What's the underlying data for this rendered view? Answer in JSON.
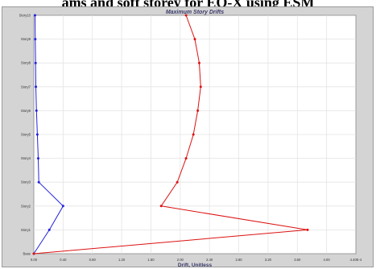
{
  "caption": "ams and soft storey for EQ-X using ESM",
  "chart_data": {
    "type": "line",
    "title": "Maximum Story Drifts",
    "xlabel": "Drift, Unitless",
    "ylabel": "",
    "xlim": [
      0,
      0.0011
    ],
    "x_ticks": [
      {
        "v": 0.0,
        "label": "0.00"
      },
      {
        "v": 0.0001,
        "label": "0.40"
      },
      {
        "v": 0.0002,
        "label": "0.80"
      },
      {
        "v": 0.0003,
        "label": "1.20"
      },
      {
        "v": 0.0004,
        "label": "1.60"
      },
      {
        "v": 0.0005,
        "label": "2.00"
      },
      {
        "v": 0.0006,
        "label": "2.40"
      },
      {
        "v": 0.0007,
        "label": "2.80"
      },
      {
        "v": 0.0008,
        "label": "3.20"
      },
      {
        "v": 0.0009,
        "label": "3.60"
      },
      {
        "v": 0.001,
        "label": "4.00"
      },
      {
        "v": 0.0011,
        "label": "4.40E-4"
      }
    ],
    "categories": [
      "Base",
      "Story1",
      "Story2",
      "Story3",
      "Story4",
      "Story5",
      "Story6",
      "Story7",
      "Story8",
      "Story9",
      "Story10"
    ],
    "grid": true,
    "series": [
      {
        "color": "#2222dd",
        "values": [
          0.0,
          5.3e-05,
          0.0001,
          1.7e-05,
          1.5e-05,
          1.2e-05,
          9e-06,
          7e-06,
          6e-06,
          5e-06,
          4e-06
        ]
      },
      {
        "color": "#dd1111",
        "values": [
          0.0,
          0.000935,
          0.000435,
          0.00049,
          0.00052,
          0.000545,
          0.00056,
          0.00057,
          0.000565,
          0.00055,
          0.00052
        ]
      }
    ]
  }
}
